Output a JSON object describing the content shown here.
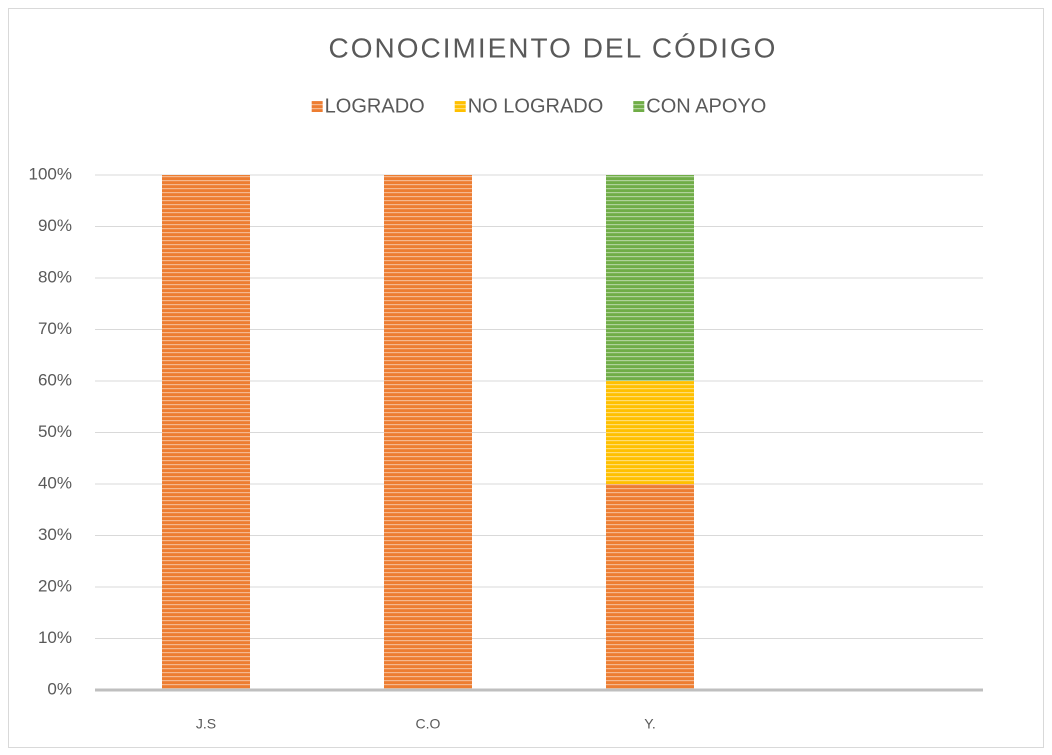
{
  "chart_data": {
    "type": "stacked_bar",
    "title": "CONOCIMIENTO DEL CÓDIGO",
    "categories": [
      "J.S",
      "C.O",
      "Y.",
      null
    ],
    "series": [
      {
        "name": "LOGRADO",
        "color": "#ed7d31",
        "values": [
          100,
          100,
          40,
          null
        ]
      },
      {
        "name": "NO LOGRADO",
        "color": "#ffc000",
        "values": [
          0,
          0,
          20,
          null
        ]
      },
      {
        "name": "CON APOYO",
        "color": "#70ad47",
        "values": [
          0,
          0,
          40,
          null
        ]
      }
    ],
    "ylim": [
      0,
      100
    ],
    "yticks": [
      {
        "value": 0,
        "label": "0%"
      },
      {
        "value": 10,
        "label": "10%"
      },
      {
        "value": 20,
        "label": "20%"
      },
      {
        "value": 30,
        "label": "30%"
      },
      {
        "value": 40,
        "label": "40%"
      },
      {
        "value": 50,
        "label": "50%"
      },
      {
        "value": 60,
        "label": "60%"
      },
      {
        "value": 70,
        "label": "70%"
      },
      {
        "value": 80,
        "label": "80%"
      },
      {
        "value": 90,
        "label": "90%"
      },
      {
        "value": 100,
        "label": "100%"
      }
    ],
    "grid": true,
    "legend": "top"
  }
}
